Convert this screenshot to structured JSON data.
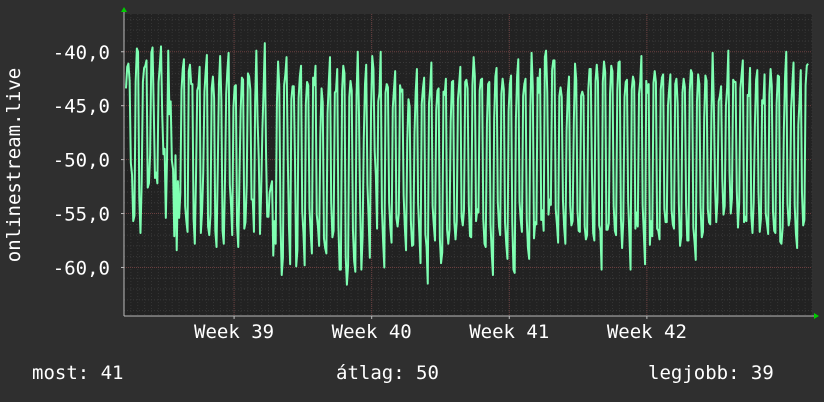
{
  "chart_data": {
    "type": "line",
    "ylabel": "onlinestream.live",
    "ylim": [
      -64.5,
      -36.5
    ],
    "xlim": [
      0,
      100
    ],
    "grid": true,
    "y_ticks": [
      {
        "value": -40,
        "label": "-40,0"
      },
      {
        "value": -45,
        "label": "-45,0"
      },
      {
        "value": -50,
        "label": "-50,0"
      },
      {
        "value": -55,
        "label": "-55,0"
      },
      {
        "value": -60,
        "label": "-60,0"
      }
    ],
    "x_ticks": [
      {
        "position": 16,
        "label": "Week 39"
      },
      {
        "position": 36,
        "label": "Week 40"
      },
      {
        "position": 56,
        "label": "Week 41"
      },
      {
        "position": 76,
        "label": "Week 42"
      }
    ],
    "series": [
      {
        "color": "#7fffb2",
        "values": [
          -43.4,
          -41.4,
          -41.1,
          -42.7,
          -50.3,
          -51.4,
          -55.7,
          -55.2,
          -42.8,
          -39.7,
          -40.0,
          -53.5,
          -56.8,
          -52.1,
          -42.8,
          -41.5,
          -41.3,
          -40.8,
          -52.6,
          -52.2,
          -49.5,
          -40.1,
          -39.6,
          -45.3,
          -51.7,
          -51.2,
          -52.2,
          -42.8,
          -41.3,
          -39.5,
          -45.8,
          -49.5,
          -49.0,
          -55.4,
          -49.8,
          -39.9,
          -45.8,
          -44.6,
          -50.1,
          -50.9,
          -57.1,
          -49.6,
          -58.4,
          -52.0,
          -55.4,
          -53.2,
          -43.5,
          -41.6,
          -40.7,
          -54.3,
          -55.7,
          -56.7,
          -41.8,
          -41.2,
          -43.0,
          -43.0,
          -55.5,
          -57.8,
          -51.6,
          -43.6,
          -43.2,
          -41.4,
          -56.8,
          -54.9,
          -51.2,
          -43.7,
          -41.8,
          -40.3,
          -56.2,
          -57.0,
          -55.1,
          -43.4,
          -42.3,
          -44.3,
          -56.6,
          -58.1,
          -51.0,
          -43.0,
          -40.4,
          -44.5,
          -56.6,
          -57.8,
          -52.0,
          -43.9,
          -41.7,
          -40.1,
          -52.3,
          -54.2,
          -57.0,
          -45.2,
          -43.2,
          -43.1,
          -56.1,
          -58.1,
          -51.6,
          -45.4,
          -42.4,
          -42.6,
          -56.4,
          -55.8,
          -52.3,
          -42.0,
          -42.3,
          -43.5,
          -53.7,
          -53.7,
          -56.7,
          -44.6,
          -39.9,
          -46.3,
          -50.0,
          -56.9,
          -52.9,
          -47.2,
          -43.4,
          -39.2,
          -49.3,
          -55.3,
          -55.3,
          -53.1,
          -52.5,
          -52.0,
          -58.9,
          -55.7,
          -57.8,
          -44.8,
          -40.9,
          -43.3,
          -55.8,
          -60.7,
          -59.1,
          -43.1,
          -42.1,
          -40.5,
          -49.7,
          -56.2,
          -59.7,
          -44.4,
          -43.2,
          -43.2,
          -50.1,
          -59.9,
          -58.4,
          -44.3,
          -42.3,
          -41.3,
          -54.8,
          -56.8,
          -59.8,
          -44.8,
          -42.8,
          -43.1,
          -54.5,
          -56.8,
          -58.7,
          -42.4,
          -43.1,
          -41.3,
          -55.1,
          -56.2,
          -58.0,
          -47.7,
          -43.4,
          -44.7,
          -57.3,
          -58.2,
          -58.7,
          -45.7,
          -42.8,
          -40.5,
          -54.0,
          -57.2,
          -56.6,
          -43.8,
          -43.6,
          -41.6,
          -56.2,
          -60.2,
          -60.2,
          -43.6,
          -41.3,
          -42.0,
          -59.0,
          -61.6,
          -59.8,
          -44.2,
          -42.7,
          -43.6,
          -56.5,
          -59.4,
          -60.4,
          -44.0,
          -40.0,
          -45.7,
          -54.5,
          -60.2,
          -57.2,
          -48.0,
          -43.0,
          -41.2,
          -52.3,
          -55.4,
          -59.1,
          -45.5,
          -40.4,
          -41.6,
          -49.2,
          -51.5,
          -56.4,
          -44.6,
          -43.8,
          -40.0,
          -54.5,
          -57.6,
          -60.0,
          -43.8,
          -43.0,
          -43.3,
          -54.0,
          -56.3,
          -57.7,
          -45.2,
          -43.5,
          -41.8,
          -55.4,
          -56.2,
          -55.0,
          -43.1,
          -43.7,
          -43.5,
          -53.3,
          -56.3,
          -58.4,
          -48.3,
          -44.4,
          -45.1,
          -55.7,
          -58.0,
          -57.9,
          -47.6,
          -43.7,
          -41.6,
          -54.1,
          -56.8,
          -59.6,
          -44.8,
          -43.4,
          -42.4,
          -56.9,
          -58.1,
          -61.5,
          -44.8,
          -43.4,
          -41.0,
          -54.3,
          -56.1,
          -57.5,
          -45.4,
          -43.6,
          -43.4,
          -57.3,
          -59.6,
          -58.6,
          -43.7,
          -44.0,
          -42.5,
          -56.5,
          -57.8,
          -56.5,
          -46.5,
          -42.8,
          -42.7,
          -55.8,
          -57.4,
          -55.7,
          -44.4,
          -43.0,
          -41.4,
          -55.3,
          -56.1,
          -54.7,
          -42.8,
          -42.6,
          -43.4,
          -54.2,
          -57.1,
          -57.2,
          -43.1,
          -40.5,
          -42.3,
          -55.7,
          -54.6,
          -54.9,
          -43.6,
          -42.6,
          -42.5,
          -55.5,
          -57.8,
          -58.1,
          -46.7,
          -43.0,
          -42.8,
          -56.0,
          -58.7,
          -60.7,
          -46.2,
          -42.3,
          -41.5,
          -53.9,
          -56.2,
          -57.0,
          -43.9,
          -42.5,
          -43.5,
          -55.8,
          -57.8,
          -59.2,
          -45.4,
          -43.0,
          -42.2,
          -55.8,
          -60.2,
          -60.5,
          -46.3,
          -42.3,
          -40.7,
          -53.9,
          -55.6,
          -56.7,
          -44.1,
          -43.0,
          -42.5,
          -55.5,
          -58.2,
          -59.2,
          -45.1,
          -40.1,
          -43.3,
          -57.3,
          -55.8,
          -56.0,
          -42.4,
          -43.8,
          -41.6,
          -55.6,
          -54.7,
          -56.6,
          -40.5,
          -39.9,
          -43.8,
          -55.1,
          -53.7,
          -54.2,
          -41.7,
          -40.8,
          -40.8,
          -54.6,
          -56.0,
          -57.7,
          -44.1,
          -43.3,
          -44.2,
          -53.8,
          -56.3,
          -57.8,
          -47.3,
          -43.8,
          -42.3,
          -54.3,
          -56.1,
          -55.7,
          -46.5,
          -41.1,
          -42.6,
          -54.7,
          -56.6,
          -56.7,
          -44.1,
          -43.7,
          -44.1,
          -56.2,
          -57.4,
          -57.0,
          -43.5,
          -41.6,
          -41.6,
          -51.3,
          -56.8,
          -57.5,
          -42.7,
          -41.2,
          -42.8,
          -56.1,
          -56.6,
          -60.2,
          -42.8,
          -40.9,
          -41.9,
          -56.5,
          -56.5,
          -55.9,
          -43.9,
          -41.3,
          -41.8,
          -54.3,
          -56.6,
          -57.0,
          -43.6,
          -41.0,
          -40.9,
          -55.4,
          -58.2,
          -55.6,
          -44.2,
          -42.8,
          -42.6,
          -53.9,
          -56.9,
          -60.2,
          -43.5,
          -42.3,
          -42.8,
          -56.4,
          -54.9,
          -56.2,
          -43.9,
          -42.8,
          -40.4,
          -54.2,
          -56.9,
          -59.7,
          -42.7,
          -43.8,
          -43.0,
          -57.9,
          -55.7,
          -57.1,
          -42.9,
          -41.8,
          -42.8,
          -56.4,
          -56.6,
          -57.4,
          -43.5,
          -42.4,
          -42.1,
          -54.6,
          -55.8,
          -55.8,
          -45.0,
          -43.4,
          -42.1,
          -54.7,
          -56.0,
          -56.4,
          -43.0,
          -42.5,
          -44.8,
          -54.1,
          -58.0,
          -57.1,
          -43.8,
          -42.5,
          -43.3,
          -54.2,
          -57.5,
          -57.5,
          -43.7,
          -41.7,
          -42.0,
          -56.3,
          -57.6,
          -59.3,
          -44.6,
          -42.1,
          -43.0,
          -54.4,
          -57.2,
          -56.7,
          -46.1,
          -42.2,
          -42.7,
          -54.6,
          -55.8,
          -56.0,
          -45.8,
          -40.1,
          -45.0,
          -52.5,
          -55.8,
          -53.7,
          -44.6,
          -44.1,
          -43.2,
          -51.8,
          -55.1,
          -54.3,
          -45.0,
          -43.3,
          -39.9,
          -51.2,
          -55.0,
          -53.6,
          -42.6,
          -42.8,
          -42.8,
          -52.9,
          -56.3,
          -54.0,
          -43.4,
          -42.1,
          -40.8,
          -55.8,
          -55.3,
          -55.7,
          -44.0,
          -44.1,
          -41.5,
          -55.2,
          -56.8,
          -54.0,
          -46.7,
          -42.6,
          -41.7,
          -53.0,
          -56.7,
          -55.5,
          -44.5,
          -44.8,
          -42.1,
          -55.0,
          -55.9,
          -56.9,
          -44.0,
          -41.6,
          -43.2,
          -54.8,
          -56.6,
          -56.8,
          -44.8,
          -42.2,
          -42.3,
          -57.6,
          -57.8,
          -56.3,
          -47.2,
          -42.3,
          -40.0,
          -54.1,
          -56.1,
          -55.4,
          -45.3,
          -43.1,
          -41.0,
          -54.3,
          -56.9,
          -58.2,
          -46.8,
          -44.5,
          -41.7,
          -53.0,
          -56.1,
          -55.6,
          -43.1,
          -41.3,
          -41.1
        ]
      }
    ]
  },
  "stats": [
    {
      "label": "most:",
      "value": "41"
    },
    {
      "label": "átlag:",
      "value": "50"
    },
    {
      "label": "legjobb:",
      "value": "39"
    }
  ]
}
